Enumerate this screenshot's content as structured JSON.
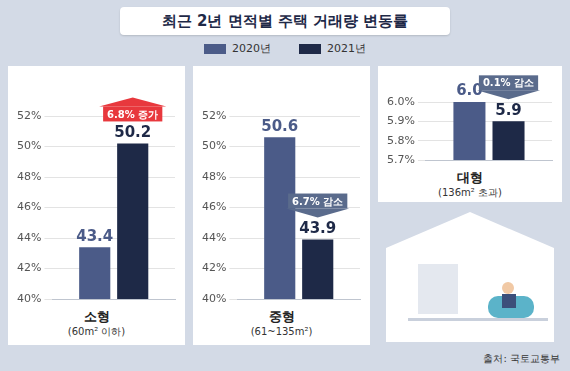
{
  "title": "최근 2년 면적별 주택 거래량 변동률",
  "source": "출처: 국토교통부",
  "chart_data": [
    {
      "type": "bar",
      "categories": [
        "소형"
      ],
      "subtitle": "(60m² 이하)",
      "series": [
        {
          "name": "2020년",
          "color": "#4b5b88",
          "values": [
            43.4
          ]
        },
        {
          "name": "2021년",
          "color": "#1e2947",
          "values": [
            50.2
          ]
        }
      ],
      "ylim": [
        40,
        52
      ],
      "yticks": [
        {
          "value": 40,
          "label": "40%"
        },
        {
          "value": 42,
          "label": "42%"
        },
        {
          "value": 44,
          "label": "44%"
        },
        {
          "value": 46,
          "label": "46%"
        },
        {
          "value": 48,
          "label": "48%"
        },
        {
          "value": 50,
          "label": "50%"
        },
        {
          "value": 52,
          "label": "52%"
        }
      ],
      "grid": true,
      "data_labels": true,
      "tick_labels": "y",
      "legend": "top",
      "annotation": "6.8% 증가"
    },
    {
      "type": "bar",
      "categories": [
        "중형"
      ],
      "subtitle": "(61~135m²)",
      "series": [
        {
          "name": "2020년",
          "color": "#4b5b88",
          "values": [
            50.6
          ]
        },
        {
          "name": "2021년",
          "color": "#1e2947",
          "values": [
            43.9
          ]
        }
      ],
      "ylim": [
        40,
        52
      ],
      "yticks": [
        {
          "value": 40,
          "label": "40%"
        },
        {
          "value": 42,
          "label": "42%"
        },
        {
          "value": 44,
          "label": "44%"
        },
        {
          "value": 46,
          "label": "46%"
        },
        {
          "value": 48,
          "label": "48%"
        },
        {
          "value": 50,
          "label": "50%"
        },
        {
          "value": 52,
          "label": "52%"
        }
      ],
      "grid": true,
      "data_labels": true,
      "tick_labels": "y",
      "annotation": "6.7% 감소"
    },
    {
      "type": "bar",
      "categories": [
        "대형"
      ],
      "subtitle": "(136m² 초과)",
      "series": [
        {
          "name": "2020년",
          "color": "#4b5b88",
          "values": [
            6.0
          ],
          "value_labels": [
            "6.0"
          ]
        },
        {
          "name": "2021년",
          "color": "#1e2947",
          "values": [
            5.9
          ]
        }
      ],
      "ylim": [
        5.7,
        6.0
      ],
      "yticks": [
        {
          "value": 5.7,
          "label": "5.7%"
        },
        {
          "value": 5.8,
          "label": "5.8%"
        },
        {
          "value": 5.9,
          "label": "5.9%"
        },
        {
          "value": 6.0,
          "label": "6.0%"
        }
      ],
      "grid": true,
      "data_labels": true,
      "tick_labels": "y",
      "annotation": "0.1% 감소"
    }
  ]
}
